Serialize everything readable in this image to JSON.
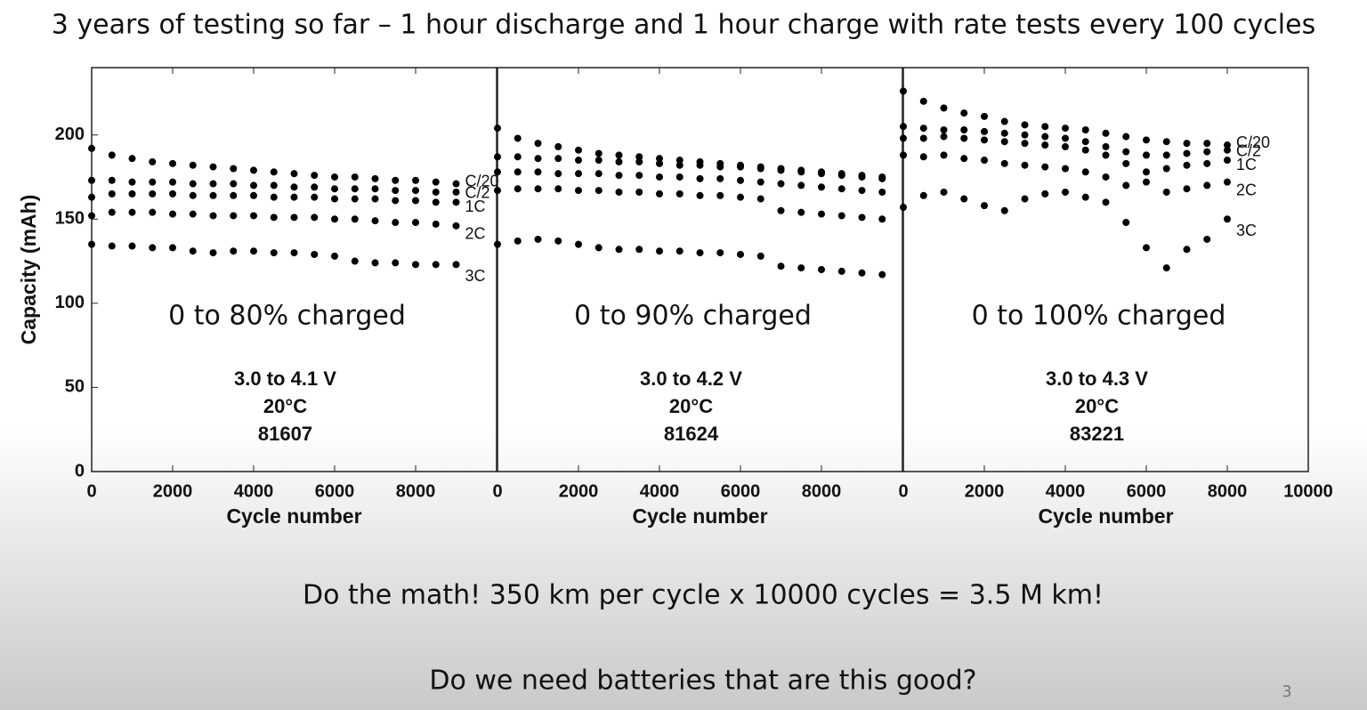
{
  "slide": {
    "title": "3 years of testing so far – 1 hour discharge and 1 hour charge with rate tests every 100 cycles",
    "lines": [
      "Do the math!  350 km per cycle x 10000 cycles = 3.5 M km!",
      "Do we need batteries that are this good?"
    ],
    "page_number": "3"
  },
  "chart_data": [
    {
      "type": "scatter",
      "ylabel": "Capacity (mAh)",
      "xlabel": "Cycle number",
      "annotations": [
        "0 to 80% charged",
        "3.0 to 4.1 V",
        "20°C",
        "81607"
      ],
      "xlim": [
        0,
        10000
      ],
      "ylim": [
        0,
        240
      ],
      "xticks": [
        0,
        2000,
        4000,
        6000,
        8000
      ],
      "yticks": [
        0,
        50,
        100,
        150,
        200
      ],
      "x": [
        0,
        500,
        1000,
        1500,
        2000,
        2500,
        3000,
        3500,
        4000,
        4500,
        5000,
        5500,
        6000,
        6500,
        7000,
        7500,
        8000,
        8500,
        9000
      ],
      "series": [
        {
          "name": "C/20",
          "color": "#000000",
          "values": [
            192,
            188,
            186,
            184,
            183,
            182,
            181,
            180,
            179,
            178,
            177,
            176,
            175,
            175,
            174,
            173,
            173,
            172,
            171
          ]
        },
        {
          "name": "C/2",
          "color": "#000000",
          "values": [
            173,
            173,
            172,
            172,
            172,
            171,
            171,
            171,
            170,
            170,
            169,
            169,
            168,
            168,
            168,
            167,
            167,
            166,
            166
          ]
        },
        {
          "name": "1C",
          "color": "#000000",
          "values": [
            163,
            165,
            165,
            165,
            165,
            164,
            164,
            164,
            164,
            163,
            163,
            163,
            162,
            162,
            162,
            161,
            161,
            160,
            160
          ]
        },
        {
          "name": "2C",
          "color": "#000000",
          "values": [
            152,
            154,
            154,
            154,
            153,
            153,
            152,
            152,
            152,
            151,
            151,
            151,
            150,
            150,
            149,
            148,
            148,
            147,
            146
          ]
        },
        {
          "name": "3C",
          "color": "#000000",
          "values": [
            135,
            134,
            134,
            133,
            133,
            131,
            130,
            131,
            131,
            130,
            130,
            129,
            128,
            125,
            124,
            124,
            123,
            123,
            123
          ]
        }
      ]
    },
    {
      "type": "scatter",
      "xlabel": "Cycle number",
      "annotations": [
        "0 to 90% charged",
        "3.0 to 4.2 V",
        "20°C",
        "81624"
      ],
      "xlim": [
        0,
        10000
      ],
      "ylim": [
        0,
        240
      ],
      "xticks": [
        0,
        2000,
        4000,
        6000,
        8000
      ],
      "x": [
        0,
        500,
        1000,
        1500,
        2000,
        2500,
        3000,
        3500,
        4000,
        4500,
        5000,
        5500,
        6000,
        6500,
        7000,
        7500,
        8000,
        8500,
        9000,
        9500
      ],
      "series": [
        {
          "color": "#000000",
          "values": [
            204,
            198,
            195,
            193,
            191,
            189,
            188,
            187,
            186,
            185,
            184,
            183,
            182,
            181,
            180,
            179,
            178,
            177,
            176,
            175
          ]
        },
        {
          "color": "#000000",
          "values": [
            187,
            187,
            186,
            186,
            185,
            185,
            184,
            184,
            183,
            182,
            182,
            181,
            181,
            180,
            179,
            178,
            177,
            176,
            175,
            174
          ]
        },
        {
          "color": "#000000",
          "values": [
            178,
            178,
            178,
            177,
            177,
            177,
            176,
            176,
            175,
            175,
            174,
            174,
            173,
            172,
            171,
            170,
            169,
            168,
            167,
            166
          ]
        },
        {
          "color": "#000000",
          "values": [
            167,
            168,
            168,
            168,
            167,
            167,
            166,
            166,
            165,
            165,
            164,
            164,
            163,
            162,
            155,
            154,
            153,
            152,
            151,
            150
          ]
        },
        {
          "color": "#000000",
          "values": [
            135,
            137,
            138,
            137,
            135,
            133,
            132,
            132,
            131,
            131,
            130,
            130,
            129,
            128,
            122,
            121,
            120,
            119,
            118,
            117
          ]
        }
      ]
    },
    {
      "type": "scatter",
      "xlabel": "Cycle number",
      "annotations": [
        "0 to 100% charged",
        "3.0 to 4.3 V",
        "20°C",
        "83221"
      ],
      "xlim": [
        0,
        10000
      ],
      "ylim": [
        0,
        240
      ],
      "xticks": [
        0,
        2000,
        4000,
        6000,
        8000,
        10000
      ],
      "x": [
        0,
        500,
        1000,
        1500,
        2000,
        2500,
        3000,
        3500,
        4000,
        4500,
        5000,
        5500,
        6000,
        6500,
        7000,
        7500,
        8000
      ],
      "series": [
        {
          "name": "C/20",
          "color": "#000000",
          "values": [
            226,
            220,
            216,
            213,
            211,
            208,
            206,
            205,
            204,
            203,
            201,
            199,
            197,
            196,
            195,
            195,
            194
          ]
        },
        {
          "name": "C/2",
          "color": "#000000",
          "values": [
            205,
            204,
            203,
            203,
            202,
            201,
            200,
            199,
            198,
            196,
            193,
            190,
            188,
            188,
            189,
            190,
            191
          ]
        },
        {
          "name": "1C",
          "color": "#000000",
          "values": [
            198,
            198,
            199,
            198,
            197,
            196,
            195,
            194,
            193,
            191,
            188,
            183,
            178,
            180,
            182,
            183,
            185
          ]
        },
        {
          "name": "2C",
          "color": "#000000",
          "values": [
            188,
            187,
            188,
            186,
            185,
            183,
            182,
            181,
            180,
            178,
            175,
            170,
            172,
            166,
            168,
            170,
            172
          ]
        },
        {
          "name": "3C",
          "color": "#000000",
          "values": [
            157,
            164,
            166,
            162,
            158,
            155,
            162,
            165,
            166,
            163,
            160,
            148,
            133,
            121,
            132,
            138,
            150
          ]
        }
      ]
    }
  ]
}
